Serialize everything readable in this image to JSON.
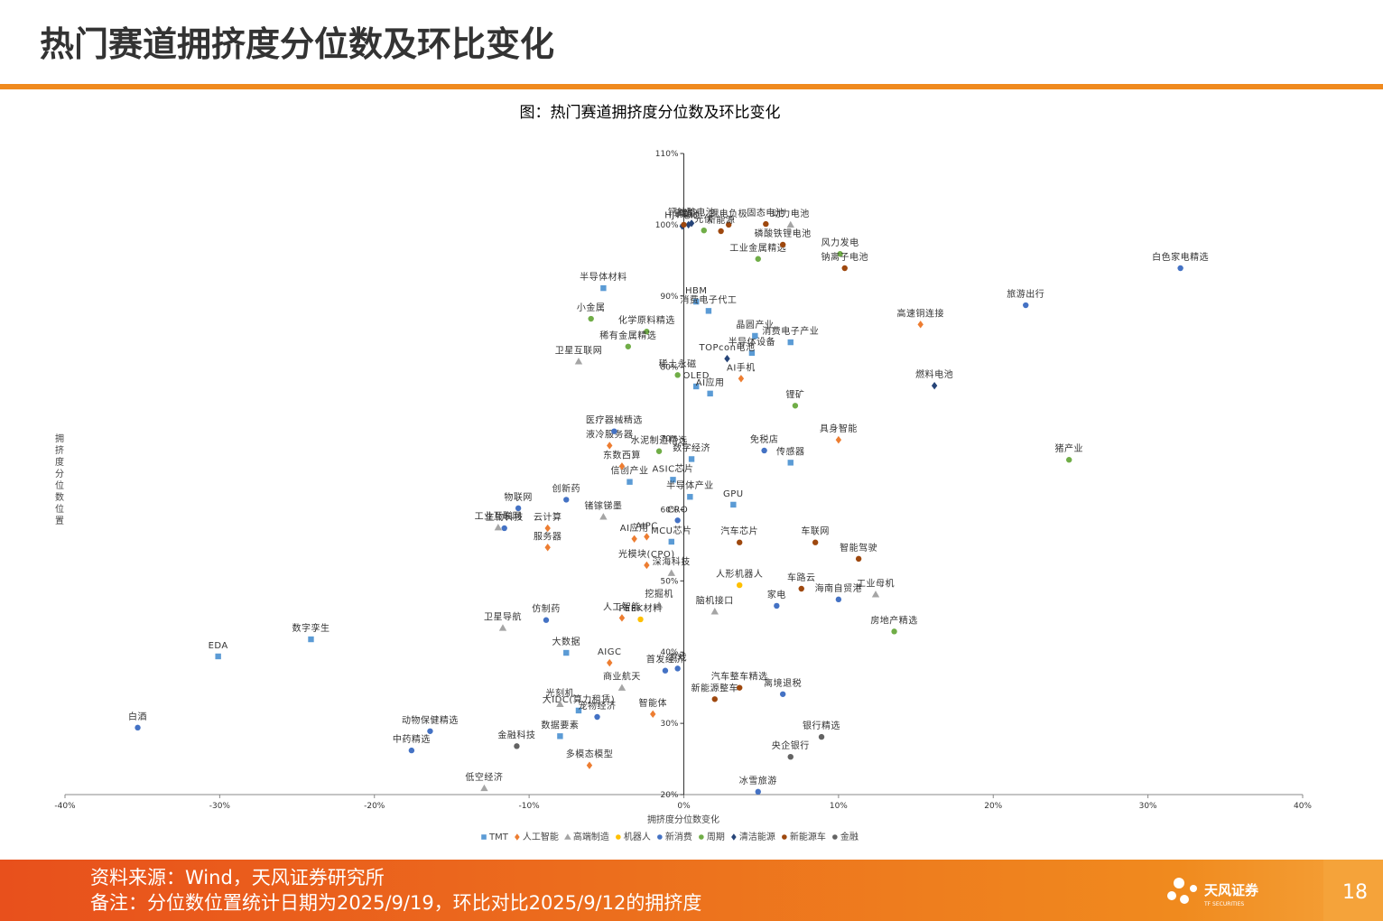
{
  "header": {
    "title": "热门赛道拥挤度分位数及环比变化"
  },
  "chart_data": {
    "type": "scatter",
    "title": "图：热门赛道拥挤度分位数及环比变化",
    "x_label": "拥挤度分位数变化",
    "y_label": "拥挤度分位数位置",
    "xlim": [
      -40,
      40
    ],
    "ylim": [
      20,
      110
    ],
    "xticks": [
      {
        "value": -40,
        "label": "-40%"
      },
      {
        "value": -30,
        "label": "-30%"
      },
      {
        "value": -20,
        "label": "-20%"
      },
      {
        "value": -10,
        "label": "-10%"
      },
      {
        "value": 0,
        "label": "0%"
      },
      {
        "value": 10,
        "label": "10%"
      },
      {
        "value": 20,
        "label": "20%"
      },
      {
        "value": 30,
        "label": "30%"
      },
      {
        "value": 40,
        "label": "40%"
      }
    ],
    "yticks": [
      {
        "value": 20,
        "label": "20%"
      },
      {
        "value": 30,
        "label": "30%"
      },
      {
        "value": 40,
        "label": "40%"
      },
      {
        "value": 50,
        "label": "50%"
      },
      {
        "value": 60,
        "label": "60%"
      },
      {
        "value": 70,
        "label": "70%"
      },
      {
        "value": 80,
        "label": "80%"
      },
      {
        "value": 90,
        "label": "90%"
      },
      {
        "value": 100,
        "label": "100%"
      },
      {
        "value": 110,
        "label": "110%"
      }
    ],
    "series": [
      {
        "name": "TMT",
        "color": "#5b9bd5",
        "marker": "square",
        "labels": [
          "半导体材料",
          "HBM",
          "消费电子代工",
          "消费电子产业",
          "半导体设备",
          "晶圆产业",
          "OLED",
          "AI应用",
          "传感器",
          "GPU",
          "ASIC芯片",
          "半导体产业",
          "信创产业",
          "数字经济",
          "MCU芯片",
          "数字孪生",
          "EDA",
          "大数据",
          "大IDC(算力租赁)",
          "数据要素"
        ],
        "x": [
          -5.2,
          0.8,
          1.6,
          6.9,
          4.4,
          4.6,
          0.8,
          1.7,
          6.9,
          3.2,
          -0.7,
          0.4,
          -3.5,
          0.5,
          -0.8,
          -24.1,
          -30.1,
          -7.6,
          -6.8,
          -8.0
        ],
        "values": [
          91.1,
          89.2,
          87.9,
          83.5,
          82.0,
          84.4,
          77.3,
          76.3,
          66.6,
          60.7,
          64.2,
          61.8,
          63.9,
          67.1,
          55.5,
          41.8,
          39.4,
          39.9,
          31.8,
          28.2
        ]
      },
      {
        "name": "人工智能",
        "color": "#ed7d31",
        "marker": "diamond",
        "labels": [
          "高速铜连接",
          "AI手机",
          "具身智能",
          "东数西算",
          "液冷服务器",
          "云计算",
          "服务器",
          "AI应用",
          "AIPC",
          "光模块(CPO)",
          "人工智能",
          "AIGC",
          "智能体",
          "多模态模型"
        ],
        "x": [
          15.3,
          3.7,
          10.0,
          -4.0,
          -4.8,
          -8.8,
          -8.8,
          -3.2,
          -2.4,
          -2.4,
          -4.0,
          -4.8,
          -2.0,
          -6.1
        ],
        "values": [
          86.0,
          78.4,
          69.8,
          66.1,
          69.0,
          57.4,
          54.7,
          55.9,
          56.2,
          52.2,
          44.8,
          38.5,
          31.3,
          24.1
        ]
      },
      {
        "name": "高端制造",
        "color": "#a5a5a5",
        "marker": "triangle",
        "labels": [
          "卫星互联网",
          "工业互联网",
          "锗镓锑墨",
          "深海科技",
          "脑机接口",
          "卫星导航",
          "挖掘机",
          "商业航天",
          "工业母机",
          "低空经济",
          "动力电池",
          "光刻机"
        ],
        "x": [
          -6.8,
          -12.0,
          -5.2,
          -0.8,
          2.0,
          -11.7,
          -1.6,
          -4.0,
          12.4,
          -12.9,
          6.9,
          -8.0
        ],
        "values": [
          80.8,
          57.5,
          59.0,
          51.1,
          45.7,
          43.4,
          46.6,
          35.0,
          48.1,
          20.9,
          100.0,
          32.7
        ]
      },
      {
        "name": "机器人",
        "color": "#ffc000",
        "marker": "circle",
        "labels": [
          "人形机器人",
          "PEEK材料"
        ],
        "x": [
          3.6,
          -2.8
        ],
        "values": [
          49.4,
          44.6
        ]
      },
      {
        "name": "新消费",
        "color": "#4472c4",
        "marker": "circle",
        "labels": [
          "白色家电精选",
          "旅游出行",
          "免税店",
          "创新药",
          "物联网",
          "生物科技",
          "CRO",
          "仿制药",
          "家电",
          "海南自贸港",
          "首发经济",
          "游戏",
          "离境退税",
          "宠物经济",
          "动物保健精选",
          "中药精选",
          "白酒",
          "冰雪旅游",
          "医疗器械精选"
        ],
        "x": [
          32.1,
          22.1,
          5.2,
          -7.6,
          -10.7,
          -11.6,
          -0.4,
          -8.9,
          6.0,
          10.0,
          -1.2,
          -0.4,
          6.4,
          -5.6,
          -16.4,
          -17.6,
          -35.3,
          4.8,
          -4.5
        ],
        "values": [
          93.9,
          88.7,
          68.3,
          61.4,
          60.2,
          57.4,
          58.5,
          44.5,
          46.5,
          47.4,
          37.4,
          37.7,
          34.1,
          30.9,
          28.9,
          26.2,
          29.4,
          20.4,
          71.0
        ]
      },
      {
        "name": "周期",
        "color": "#70ad47",
        "marker": "circle",
        "labels": [
          "光伏",
          "工业金属精选",
          "风力发电",
          "小金属",
          "化学原料精选",
          "稀有金属精选",
          "锂矿",
          "猪产业",
          "房地产精选",
          "水泥制造精选",
          "稀土永磁"
        ],
        "x": [
          1.3,
          4.8,
          10.1,
          -6.0,
          -2.4,
          -3.6,
          7.2,
          24.9,
          13.6,
          -1.6,
          -0.4
        ],
        "values": [
          99.2,
          95.2,
          95.9,
          86.8,
          85.0,
          82.9,
          74.6,
          67.0,
          42.9,
          68.2,
          78.9
        ]
      },
      {
        "name": "清洁能源",
        "color": "#264478",
        "marker": "diamond",
        "labels": [
          "燃料电池",
          "TOPcon电池",
          "钙钛矿电池",
          "储能",
          "HJT电池"
        ],
        "x": [
          16.2,
          2.8,
          0.5,
          0.3,
          -0.1
        ],
        "values": [
          77.4,
          81.2,
          100.2,
          100.0,
          99.8
        ]
      },
      {
        "name": "新能源车",
        "color": "#9e480e",
        "marker": "circle",
        "labels": [
          "固态电池",
          "锂电负极",
          "新能源",
          "磷酸铁锂电池",
          "钠离子电池",
          "汽车芯片",
          "车联网",
          "智能驾驶",
          "车路云",
          "汽车整车精选",
          "新能源整车",
          "铜箔"
        ],
        "x": [
          5.3,
          2.9,
          2.4,
          6.4,
          10.4,
          3.6,
          8.5,
          11.3,
          7.6,
          3.6,
          2.0,
          0.0
        ],
        "values": [
          100.1,
          100.0,
          99.1,
          97.2,
          93.9,
          55.4,
          55.4,
          53.1,
          48.9,
          35.0,
          33.4,
          100.0
        ]
      },
      {
        "name": "金融",
        "color": "#636363",
        "marker": "circle",
        "labels": [
          "央企银行",
          "银行精选",
          "金融科技"
        ],
        "x": [
          6.9,
          8.9,
          -10.8
        ],
        "values": [
          25.3,
          28.1,
          26.8
        ]
      }
    ]
  },
  "footer": {
    "source": "资料来源：Wind，天风证券研究所",
    "note": "备注：分位数位置统计日期为2025/9/19，环比对比2025/9/12的拥挤度",
    "page": "18",
    "logo": "天风证券",
    "logo_en": "TF SECURITIES"
  }
}
